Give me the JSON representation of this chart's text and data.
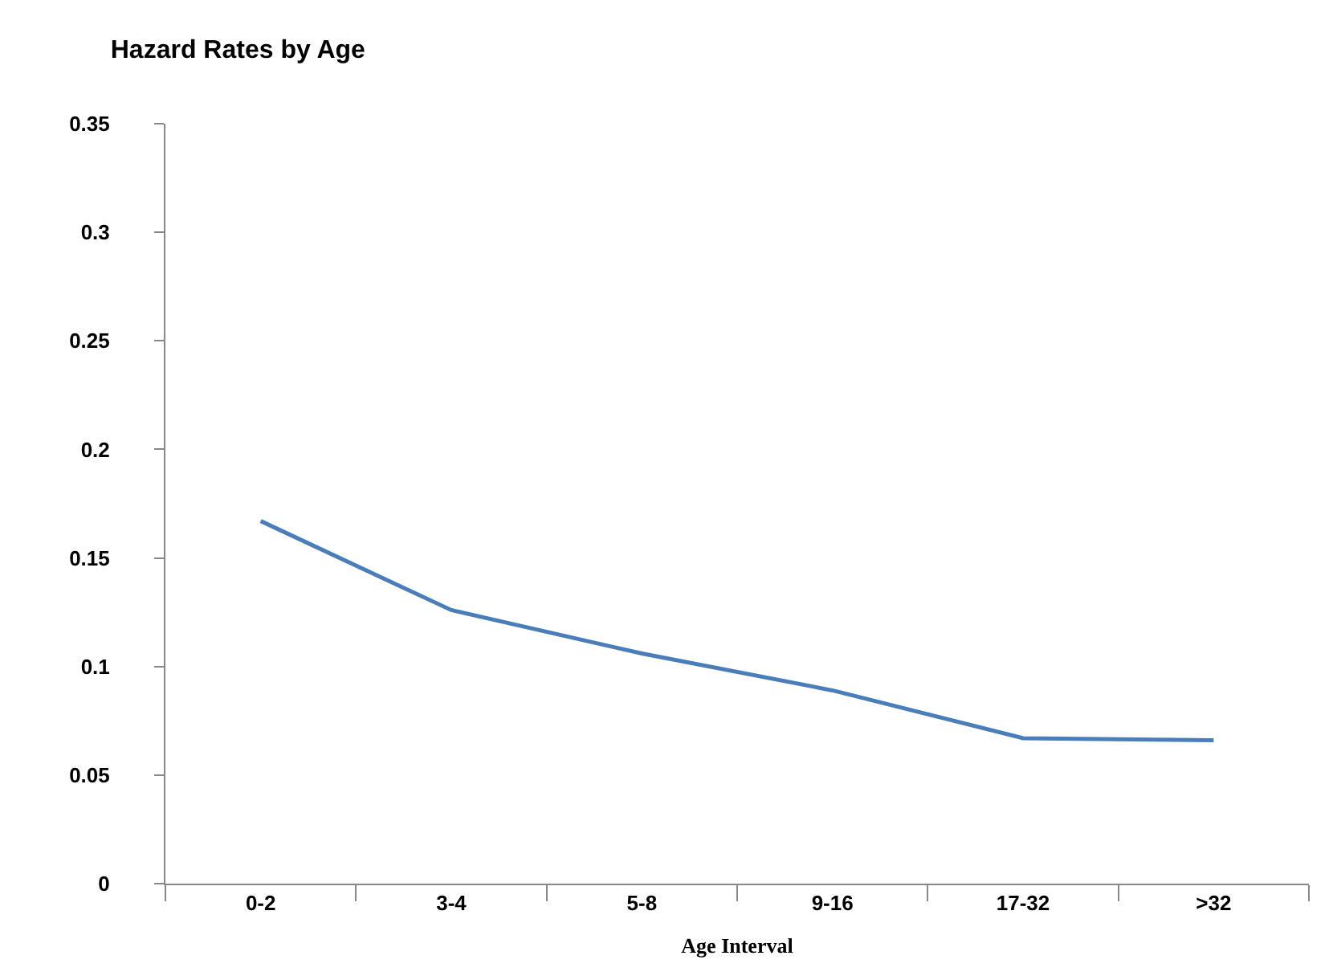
{
  "chart_data": {
    "type": "line",
    "title": "Hazard Rates by Age",
    "xlabel": "Age Interval",
    "categories": [
      "0-2",
      "3-4",
      "5-8",
      "9-16",
      "17-32",
      ">32"
    ],
    "series": [
      {
        "color": "#4a7ebb",
        "values": [
          0.167,
          0.126,
          0.106,
          0.089,
          0.067,
          0.066
        ]
      }
    ],
    "ylim": [
      0,
      0.35
    ],
    "yticks": [
      0,
      0.05,
      0.1,
      0.15,
      0.2,
      0.25,
      0.3,
      0.35
    ],
    "marker": "none",
    "line_style": "solid"
  }
}
